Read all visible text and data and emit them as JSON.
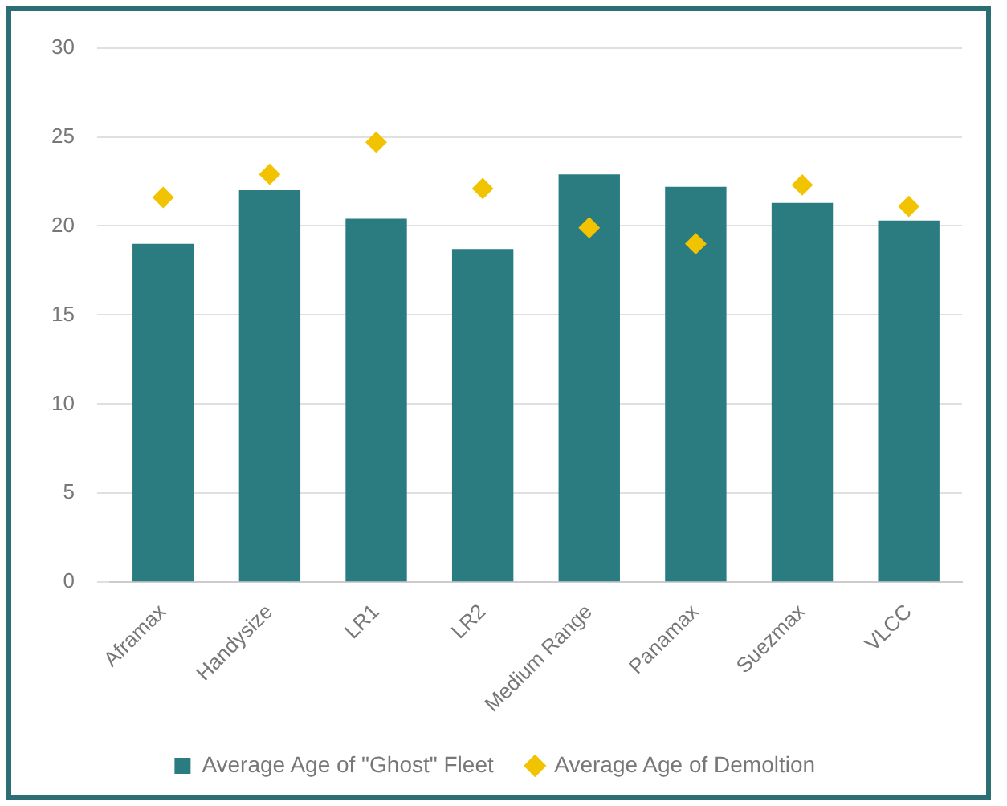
{
  "chart_data": {
    "type": "bar",
    "categories": [
      "Aframax",
      "Handysize",
      "LR1",
      "LR2",
      "Medium Range",
      "Panamax",
      "Suezmax",
      "VLCC"
    ],
    "series": [
      {
        "name": "Average Age of \"Ghost\" Fleet",
        "color": "#2b7c80",
        "values": [
          19.0,
          22.0,
          20.4,
          18.7,
          22.9,
          22.2,
          21.3,
          20.3
        ]
      },
      {
        "name": "Average Age of Demoltion",
        "type": "scatter",
        "color": "#f2c300",
        "marker": "diamond",
        "values": [
          21.6,
          22.9,
          24.7,
          22.1,
          19.9,
          19.0,
          22.3,
          21.1
        ]
      }
    ],
    "ylim": [
      0,
      30
    ],
    "yticks": [
      0,
      5,
      10,
      15,
      20,
      25,
      30
    ],
    "grid": "y",
    "legend": "bottom"
  }
}
